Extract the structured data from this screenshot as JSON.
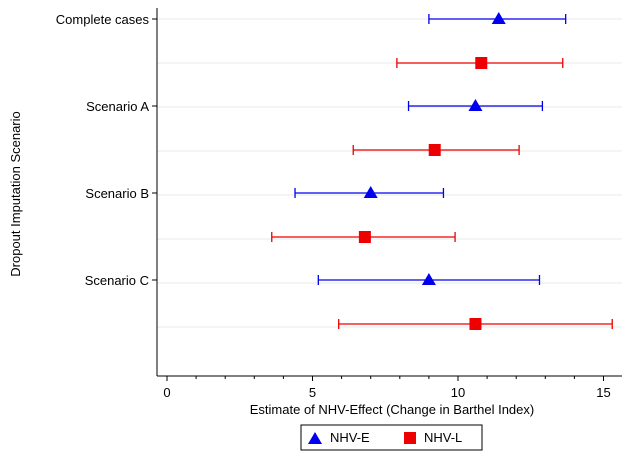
{
  "chart_data": {
    "type": "forest-plot",
    "xlabel": "Estimate of NHV-Effect (Change in Barthel Index)",
    "ylabel": "Dropout Imputation Scenario",
    "xlim": [
      0,
      15.3
    ],
    "xticks": [
      0,
      5,
      10,
      15
    ],
    "grid": "horizontal",
    "legend_position": "bottom-center",
    "groups": [
      "Complete cases",
      "Scenario A",
      "Scenario B",
      "Scenario C"
    ],
    "series": [
      {
        "name": "NHV-E",
        "color": "#0000ee",
        "marker": "triangle",
        "points": [
          {
            "group": "Complete cases",
            "estimate": 11.4,
            "lower": 9.0,
            "upper": 13.7
          },
          {
            "group": "Scenario A",
            "estimate": 10.6,
            "lower": 8.3,
            "upper": 12.9
          },
          {
            "group": "Scenario B",
            "estimate": 7.0,
            "lower": 4.4,
            "upper": 9.5
          },
          {
            "group": "Scenario C",
            "estimate": 9.0,
            "lower": 5.2,
            "upper": 12.8
          }
        ]
      },
      {
        "name": "NHV-L",
        "color": "#ee0000",
        "marker": "square",
        "points": [
          {
            "group": "Complete cases",
            "estimate": 10.8,
            "lower": 7.9,
            "upper": 13.6
          },
          {
            "group": "Scenario A",
            "estimate": 9.2,
            "lower": 6.4,
            "upper": 12.1
          },
          {
            "group": "Scenario B",
            "estimate": 6.8,
            "lower": 3.6,
            "upper": 9.9
          },
          {
            "group": "Scenario C",
            "estimate": 10.6,
            "lower": 5.9,
            "upper": 15.3
          }
        ]
      }
    ]
  }
}
